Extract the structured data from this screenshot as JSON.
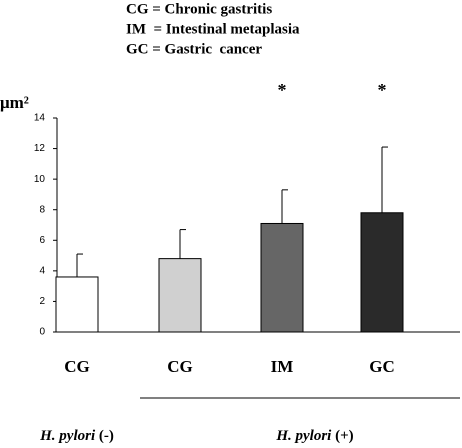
{
  "chart_data": {
    "type": "bar",
    "legend_lines": [
      "CG = Chronic gastritis",
      "IM  = Intestinal metaplasia",
      "GC = Gastric  cancer"
    ],
    "ylabel": "μm²",
    "categories": [
      "CG",
      "CG",
      "IM",
      "GC"
    ],
    "values": [
      3.6,
      4.8,
      7.1,
      7.8
    ],
    "errors": [
      1.5,
      1.9,
      2.2,
      4.3
    ],
    "colors": [
      "#ffffff",
      "#d0d0d0",
      "#666666",
      "#2a2a2a"
    ],
    "significance": [
      null,
      null,
      "*",
      "*"
    ],
    "groups": [
      {
        "italic": "H. pylori",
        "text": "(-)"
      },
      {
        "italic": "H. pylori",
        "text": "(+)"
      }
    ],
    "ylim": [
      0,
      14
    ],
    "yticks": [
      0,
      2,
      4,
      6,
      8,
      10,
      12,
      14
    ]
  }
}
